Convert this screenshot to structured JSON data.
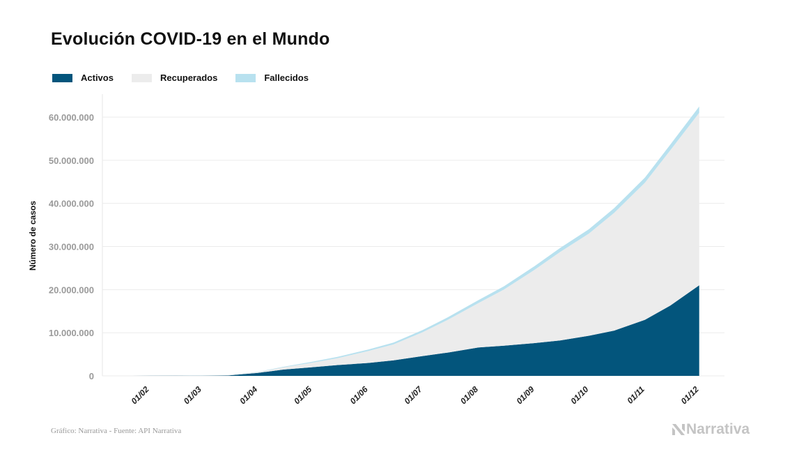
{
  "title": "Evolución COVID-19 en el Mundo",
  "footer": "Gráfico: Narrativa - Fuente: API Narrativa",
  "logo": "Narrativa",
  "colors": {
    "activos": "#03557c",
    "recuperados": "#ececec",
    "fallecidos": "#b8e1ef"
  },
  "chart_data": {
    "type": "area",
    "stacked": true,
    "title": "Evolución COVID-19 en el Mundo",
    "xlabel": "",
    "ylabel": "Número de casos",
    "ylim": [
      0,
      65000000
    ],
    "xlim": [
      "2020-01-06",
      "2020-12-15"
    ],
    "grid": true,
    "legend": "top-left",
    "y_ticks": [
      {
        "value": 0,
        "label": "0"
      },
      {
        "value": 10000000,
        "label": "10.000.000"
      },
      {
        "value": 20000000,
        "label": "20.000.000"
      },
      {
        "value": 30000000,
        "label": "30.000.000"
      },
      {
        "value": 40000000,
        "label": "40.000.000"
      },
      {
        "value": 50000000,
        "label": "50.000.000"
      },
      {
        "value": 60000000,
        "label": "60.000.000"
      }
    ],
    "x_ticks": [
      {
        "date": "2020-02-01",
        "label": "01/02"
      },
      {
        "date": "2020-03-01",
        "label": "01/03"
      },
      {
        "date": "2020-04-01",
        "label": "01/04"
      },
      {
        "date": "2020-05-01",
        "label": "01/05"
      },
      {
        "date": "2020-06-01",
        "label": "01/06"
      },
      {
        "date": "2020-07-01",
        "label": "01/07"
      },
      {
        "date": "2020-08-01",
        "label": "01/08"
      },
      {
        "date": "2020-09-01",
        "label": "01/09"
      },
      {
        "date": "2020-10-01",
        "label": "01/10"
      },
      {
        "date": "2020-11-01",
        "label": "01/11"
      },
      {
        "date": "2020-12-01",
        "label": "01/12"
      }
    ],
    "x": [
      "2020-01-22",
      "2020-02-01",
      "2020-02-15",
      "2020-03-01",
      "2020-03-15",
      "2020-04-01",
      "2020-04-15",
      "2020-05-01",
      "2020-05-15",
      "2020-06-01",
      "2020-06-15",
      "2020-07-01",
      "2020-07-15",
      "2020-08-01",
      "2020-08-15",
      "2020-09-01",
      "2020-09-15",
      "2020-10-01",
      "2020-10-15",
      "2020-11-01",
      "2020-11-15",
      "2020-12-01"
    ],
    "series": [
      {
        "name": "Activos",
        "values": [
          500,
          12000,
          56000,
          43000,
          85000,
          690000,
          1450000,
          2000000,
          2500000,
          3000000,
          3600000,
          4600000,
          5400000,
          6600000,
          7000000,
          7600000,
          8200000,
          9300000,
          10500000,
          13000000,
          16300000,
          21000000
        ]
      },
      {
        "name": "Recuperados",
        "values": [
          0,
          300,
          9000,
          45000,
          73000,
          190000,
          520000,
          1050000,
          1600000,
          2750000,
          3700000,
          5500000,
          7600000,
          10300000,
          13000000,
          17000000,
          20500000,
          23700000,
          27300000,
          31800000,
          36000000,
          40000000
        ]
      },
      {
        "name": "Fallecidos",
        "values": [
          20,
          300,
          1500,
          3000,
          6000,
          47000,
          130000,
          230000,
          300000,
          370000,
          430000,
          510000,
          580000,
          680000,
          770000,
          860000,
          930000,
          1010000,
          1090000,
          1190000,
          1310000,
          1460000
        ]
      }
    ]
  }
}
